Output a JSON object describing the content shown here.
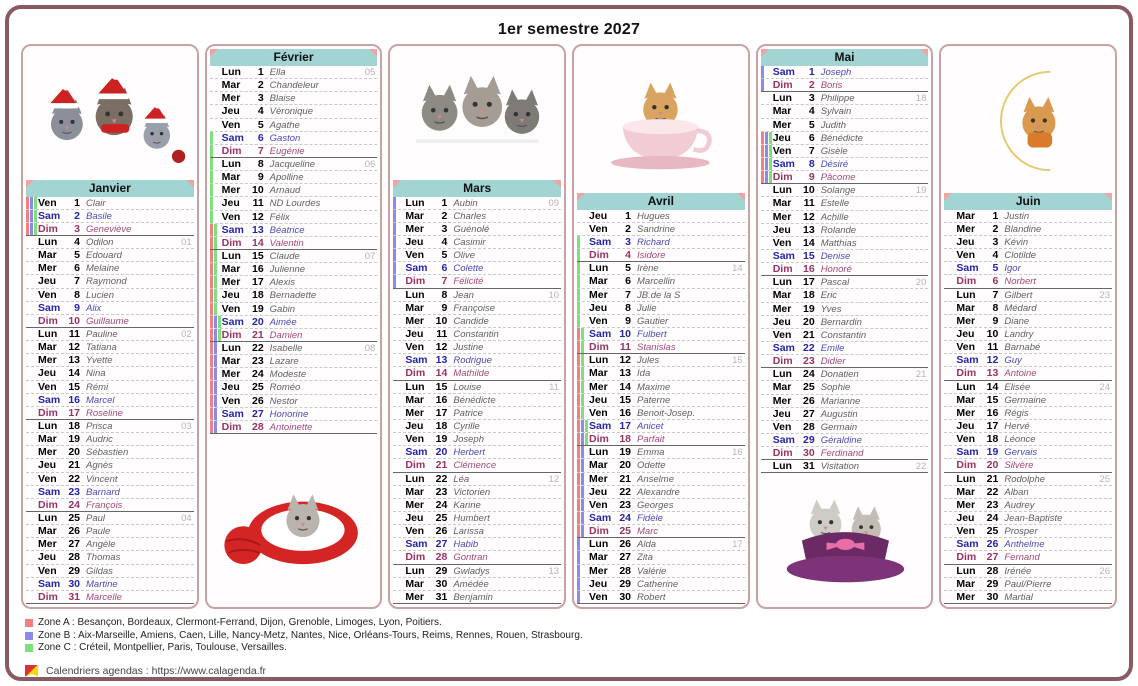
{
  "title": "1er semestre 2027",
  "colors": {
    "frame": "#8a5a62",
    "column_border": "#c9a2a2",
    "header_bg": "#a3d4d4",
    "saturday": "#2424a8",
    "sunday": "#993366",
    "week_number": "#b5b5b5",
    "zones": {
      "A": "#f28080",
      "B": "#8c8ce6",
      "C": "#7de07d"
    }
  },
  "months": [
    {
      "name": "Janvier",
      "image": "christmas-kittens",
      "image_position": "top",
      "days": [
        [
          "Ven",
          1,
          "Clair",
          "ABC",
          ""
        ],
        [
          "Sam",
          2,
          "Basile",
          "ABC",
          ""
        ],
        [
          "Dim",
          3,
          "Geneviève",
          "ABC",
          ""
        ],
        [
          "Lun",
          4,
          "Odilon",
          "",
          "01"
        ],
        [
          "Mar",
          5,
          "Edouard",
          "",
          ""
        ],
        [
          "Mer",
          6,
          "Melaine",
          "",
          ""
        ],
        [
          "Jeu",
          7,
          "Raymond",
          "",
          ""
        ],
        [
          "Ven",
          8,
          "Lucien",
          "",
          ""
        ],
        [
          "Sam",
          9,
          "Alix",
          "",
          ""
        ],
        [
          "Dim",
          10,
          "Guillaume",
          "",
          ""
        ],
        [
          "Lun",
          11,
          "Pauline",
          "",
          "02"
        ],
        [
          "Mar",
          12,
          "Tatiana",
          "",
          ""
        ],
        [
          "Mer",
          13,
          "Yvette",
          "",
          ""
        ],
        [
          "Jeu",
          14,
          "Nina",
          "",
          ""
        ],
        [
          "Ven",
          15,
          "Rémi",
          "",
          ""
        ],
        [
          "Sam",
          16,
          "Marcel",
          "",
          ""
        ],
        [
          "Dim",
          17,
          "Roseline",
          "",
          ""
        ],
        [
          "Lun",
          18,
          "Prisca",
          "",
          "03"
        ],
        [
          "Mar",
          19,
          "Audric",
          "",
          ""
        ],
        [
          "Mer",
          20,
          "Sébastien",
          "",
          ""
        ],
        [
          "Jeu",
          21,
          "Agnès",
          "",
          ""
        ],
        [
          "Ven",
          22,
          "Vincent",
          "",
          ""
        ],
        [
          "Sam",
          23,
          "Barnard",
          "",
          ""
        ],
        [
          "Dim",
          24,
          "François",
          "",
          ""
        ],
        [
          "Lun",
          25,
          "Paul",
          "",
          "04"
        ],
        [
          "Mar",
          26,
          "Paule",
          "",
          ""
        ],
        [
          "Mer",
          27,
          "Angèle",
          "",
          ""
        ],
        [
          "Jeu",
          28,
          "Thomas",
          "",
          ""
        ],
        [
          "Ven",
          29,
          "Gildas",
          "",
          ""
        ],
        [
          "Sam",
          30,
          "Martine",
          "",
          ""
        ],
        [
          "Dim",
          31,
          "Marcelle",
          "",
          ""
        ]
      ]
    },
    {
      "name": "Février",
      "image": "kitten-red-knit-yarn",
      "image_position": "bottom",
      "days": [
        [
          "Lun",
          1,
          "Ella",
          "",
          "05"
        ],
        [
          "Mar",
          2,
          "Chandeleur",
          "",
          ""
        ],
        [
          "Mer",
          3,
          "Blaise",
          "",
          ""
        ],
        [
          "Jeu",
          4,
          "Véronique",
          "",
          ""
        ],
        [
          "Ven",
          5,
          "Agathe",
          "",
          ""
        ],
        [
          "Sam",
          6,
          "Gaston",
          "C",
          ""
        ],
        [
          "Dim",
          7,
          "Eugénie",
          "C",
          ""
        ],
        [
          "Lun",
          8,
          "Jacqueline",
          "C",
          "06"
        ],
        [
          "Mar",
          9,
          "Apolline",
          "C",
          ""
        ],
        [
          "Mer",
          10,
          "Arnaud",
          "C",
          ""
        ],
        [
          "Jeu",
          11,
          "ND Lourdes",
          "C",
          ""
        ],
        [
          "Ven",
          12,
          "Félix",
          "C",
          ""
        ],
        [
          "Sam",
          13,
          "Béatrice",
          "AC",
          ""
        ],
        [
          "Dim",
          14,
          "Valentin",
          "AC",
          ""
        ],
        [
          "Lun",
          15,
          "Claude",
          "AC",
          "07"
        ],
        [
          "Mar",
          16,
          "Julienne",
          "AC",
          ""
        ],
        [
          "Mer",
          17,
          "Alexis",
          "AC",
          ""
        ],
        [
          "Jeu",
          18,
          "Bernadette",
          "AC",
          ""
        ],
        [
          "Ven",
          19,
          "Gabin",
          "AC",
          ""
        ],
        [
          "Sam",
          20,
          "Aimée",
          "ABC",
          ""
        ],
        [
          "Dim",
          21,
          "Damien",
          "ABC",
          ""
        ],
        [
          "Lun",
          22,
          "Isabelle",
          "AB",
          "08"
        ],
        [
          "Mar",
          23,
          "Lazare",
          "AB",
          ""
        ],
        [
          "Mer",
          24,
          "Modeste",
          "AB",
          ""
        ],
        [
          "Jeu",
          25,
          "Roméo",
          "AB",
          ""
        ],
        [
          "Ven",
          26,
          "Nestor",
          "AB",
          ""
        ],
        [
          "Sam",
          27,
          "Honorine",
          "AB",
          ""
        ],
        [
          "Dim",
          28,
          "Antoinette",
          "AB",
          ""
        ]
      ]
    },
    {
      "name": "Mars",
      "image": "three-kittens",
      "image_position": "top",
      "days": [
        [
          "Lun",
          1,
          "Aubin",
          "B",
          "09"
        ],
        [
          "Mar",
          2,
          "Charles",
          "B",
          ""
        ],
        [
          "Mer",
          3,
          "Guénolé",
          "B",
          ""
        ],
        [
          "Jeu",
          4,
          "Casimir",
          "B",
          ""
        ],
        [
          "Ven",
          5,
          "Olive",
          "B",
          ""
        ],
        [
          "Sam",
          6,
          "Colette",
          "B",
          ""
        ],
        [
          "Dim",
          7,
          "Félicité",
          "B",
          ""
        ],
        [
          "Lun",
          8,
          "Jean",
          "",
          "10"
        ],
        [
          "Mar",
          9,
          "Françoise",
          "",
          ""
        ],
        [
          "Mer",
          10,
          "Candide",
          "",
          ""
        ],
        [
          "Jeu",
          11,
          "Constantin",
          "",
          ""
        ],
        [
          "Ven",
          12,
          "Justine",
          "",
          ""
        ],
        [
          "Sam",
          13,
          "Rodrigue",
          "",
          ""
        ],
        [
          "Dim",
          14,
          "Mathilde",
          "",
          ""
        ],
        [
          "Lun",
          15,
          "Louise",
          "",
          "11"
        ],
        [
          "Mar",
          16,
          "Bénédicte",
          "",
          ""
        ],
        [
          "Mer",
          17,
          "Patrice",
          "",
          ""
        ],
        [
          "Jeu",
          18,
          "Cyrille",
          "",
          ""
        ],
        [
          "Ven",
          19,
          "Joseph",
          "",
          ""
        ],
        [
          "Sam",
          20,
          "Herbert",
          "",
          ""
        ],
        [
          "Dim",
          21,
          "Clémence",
          "",
          ""
        ],
        [
          "Lun",
          22,
          "Léa",
          "",
          "12"
        ],
        [
          "Mar",
          23,
          "Victorien",
          "",
          ""
        ],
        [
          "Mer",
          24,
          "Karine",
          "",
          ""
        ],
        [
          "Jeu",
          25,
          "Humbert",
          "",
          ""
        ],
        [
          "Ven",
          26,
          "Larissa",
          "",
          ""
        ],
        [
          "Sam",
          27,
          "Habib",
          "",
          ""
        ],
        [
          "Dim",
          28,
          "Gontran",
          "",
          ""
        ],
        [
          "Lun",
          29,
          "Gwladys",
          "",
          "13"
        ],
        [
          "Mar",
          30,
          "Amédée",
          "",
          ""
        ],
        [
          "Mer",
          31,
          "Benjamin",
          "",
          ""
        ]
      ]
    },
    {
      "name": "Avril",
      "image": "kitten-in-teacup",
      "image_position": "top",
      "days": [
        [
          "Jeu",
          1,
          "Hugues",
          "",
          ""
        ],
        [
          "Ven",
          2,
          "Sandrine",
          "",
          ""
        ],
        [
          "Sam",
          3,
          "Richard",
          "C",
          ""
        ],
        [
          "Dim",
          4,
          "Isidore",
          "C",
          ""
        ],
        [
          "Lun",
          5,
          "Irène",
          "C",
          "14"
        ],
        [
          "Mar",
          6,
          "Marcellin",
          "C",
          ""
        ],
        [
          "Mer",
          7,
          "JB.de la S",
          "C",
          ""
        ],
        [
          "Jeu",
          8,
          "Julie",
          "C",
          ""
        ],
        [
          "Ven",
          9,
          "Gautier",
          "C",
          ""
        ],
        [
          "Sam",
          10,
          "Fulbert",
          "AC",
          ""
        ],
        [
          "Dim",
          11,
          "Stanislas",
          "AC",
          ""
        ],
        [
          "Lun",
          12,
          "Jules",
          "AC",
          "15"
        ],
        [
          "Mar",
          13,
          "Ida",
          "AC",
          ""
        ],
        [
          "Mer",
          14,
          "Maxime",
          "AC",
          ""
        ],
        [
          "Jeu",
          15,
          "Paterne",
          "AC",
          ""
        ],
        [
          "Ven",
          16,
          "Benoit-Josep.",
          "AC",
          ""
        ],
        [
          "Sam",
          17,
          "Anicet",
          "ABC",
          ""
        ],
        [
          "Dim",
          18,
          "Parfait",
          "ABC",
          ""
        ],
        [
          "Lun",
          19,
          "Emma",
          "AB",
          "16"
        ],
        [
          "Mar",
          20,
          "Odette",
          "AB",
          ""
        ],
        [
          "Mer",
          21,
          "Anselme",
          "AB",
          ""
        ],
        [
          "Jeu",
          22,
          "Alexandre",
          "AB",
          ""
        ],
        [
          "Ven",
          23,
          "Georges",
          "AB",
          ""
        ],
        [
          "Sam",
          24,
          "Fidèle",
          "AB",
          ""
        ],
        [
          "Dim",
          25,
          "Marc",
          "AB",
          ""
        ],
        [
          "Lun",
          26,
          "Alda",
          "B",
          "17"
        ],
        [
          "Mar",
          27,
          "Zita",
          "B",
          ""
        ],
        [
          "Mer",
          28,
          "Valérie",
          "B",
          ""
        ],
        [
          "Jeu",
          29,
          "Catherine",
          "B",
          ""
        ],
        [
          "Ven",
          30,
          "Robert",
          "B",
          ""
        ]
      ]
    },
    {
      "name": "Mai",
      "image": "kittens-in-purple-hat",
      "image_position": "bottom",
      "days": [
        [
          "Sam",
          1,
          "Joseph",
          "B",
          ""
        ],
        [
          "Dim",
          2,
          "Boris",
          "B",
          ""
        ],
        [
          "Lun",
          3,
          "Philippe",
          "",
          "18"
        ],
        [
          "Mar",
          4,
          "Sylvain",
          "",
          ""
        ],
        [
          "Mer",
          5,
          "Judith",
          "",
          ""
        ],
        [
          "Jeu",
          6,
          "Bénédicte",
          "ABC",
          ""
        ],
        [
          "Ven",
          7,
          "Gisèle",
          "ABC",
          ""
        ],
        [
          "Sam",
          8,
          "Désiré",
          "ABC",
          ""
        ],
        [
          "Dim",
          9,
          "Pâcome",
          "ABC",
          ""
        ],
        [
          "Lun",
          10,
          "Solange",
          "",
          "19"
        ],
        [
          "Mar",
          11,
          "Estelle",
          "",
          ""
        ],
        [
          "Mer",
          12,
          "Achille",
          "",
          ""
        ],
        [
          "Jeu",
          13,
          "Rolande",
          "",
          ""
        ],
        [
          "Ven",
          14,
          "Matthias",
          "",
          ""
        ],
        [
          "Sam",
          15,
          "Denise",
          "",
          ""
        ],
        [
          "Dim",
          16,
          "Honoré",
          "",
          ""
        ],
        [
          "Lun",
          17,
          "Pascal",
          "",
          "20"
        ],
        [
          "Mar",
          18,
          "Eric",
          "",
          ""
        ],
        [
          "Mer",
          19,
          "Yves",
          "",
          ""
        ],
        [
          "Jeu",
          20,
          "Bernardin",
          "",
          ""
        ],
        [
          "Ven",
          21,
          "Constantin",
          "",
          ""
        ],
        [
          "Sam",
          22,
          "Emile",
          "",
          ""
        ],
        [
          "Dim",
          23,
          "Didier",
          "",
          ""
        ],
        [
          "Lun",
          24,
          "Donatien",
          "",
          "21"
        ],
        [
          "Mar",
          25,
          "Sophie",
          "",
          ""
        ],
        [
          "Mer",
          26,
          "Marianne",
          "",
          ""
        ],
        [
          "Jeu",
          27,
          "Augustin",
          "",
          ""
        ],
        [
          "Ven",
          28,
          "Germain",
          "",
          ""
        ],
        [
          "Sam",
          29,
          "Géraldine",
          "",
          ""
        ],
        [
          "Dim",
          30,
          "Ferdinand",
          "",
          ""
        ],
        [
          "Lun",
          31,
          "Visitation",
          "",
          "22"
        ]
      ]
    },
    {
      "name": "Juin",
      "image": "kitten-on-moon",
      "image_position": "top",
      "days": [
        [
          "Mar",
          1,
          "Justin",
          "",
          ""
        ],
        [
          "Mer",
          2,
          "Blandine",
          "",
          ""
        ],
        [
          "Jeu",
          3,
          "Kévin",
          "",
          ""
        ],
        [
          "Ven",
          4,
          "Clotilde",
          "",
          ""
        ],
        [
          "Sam",
          5,
          "Igor",
          "",
          ""
        ],
        [
          "Dim",
          6,
          "Norbert",
          "",
          ""
        ],
        [
          "Lun",
          7,
          "Gilbert",
          "",
          "23"
        ],
        [
          "Mar",
          8,
          "Médard",
          "",
          ""
        ],
        [
          "Mer",
          9,
          "Diane",
          "",
          ""
        ],
        [
          "Jeu",
          10,
          "Landry",
          "",
          ""
        ],
        [
          "Ven",
          11,
          "Barnabé",
          "",
          ""
        ],
        [
          "Sam",
          12,
          "Guy",
          "",
          ""
        ],
        [
          "Dim",
          13,
          "Antoine",
          "",
          ""
        ],
        [
          "Lun",
          14,
          "Elisée",
          "",
          "24"
        ],
        [
          "Mar",
          15,
          "Germaine",
          "",
          ""
        ],
        [
          "Mer",
          16,
          "Régis",
          "",
          ""
        ],
        [
          "Jeu",
          17,
          "Hervé",
          "",
          ""
        ],
        [
          "Ven",
          18,
          "Léonce",
          "",
          ""
        ],
        [
          "Sam",
          19,
          "Gervais",
          "",
          ""
        ],
        [
          "Dim",
          20,
          "Silvère",
          "",
          ""
        ],
        [
          "Lun",
          21,
          "Rodolphe",
          "",
          "25"
        ],
        [
          "Mar",
          22,
          "Alban",
          "",
          ""
        ],
        [
          "Mer",
          23,
          "Audrey",
          "",
          ""
        ],
        [
          "Jeu",
          24,
          "Jean-Baptiste",
          "",
          ""
        ],
        [
          "Ven",
          25,
          "Prosper",
          "",
          ""
        ],
        [
          "Sam",
          26,
          "Anthelme",
          "",
          ""
        ],
        [
          "Dim",
          27,
          "Fernand",
          "",
          ""
        ],
        [
          "Lun",
          28,
          "Irénée",
          "",
          "26"
        ],
        [
          "Mar",
          29,
          "Paul/Pierre",
          "",
          ""
        ],
        [
          "Mer",
          30,
          "Martial",
          "",
          ""
        ]
      ]
    }
  ],
  "legend": [
    {
      "label": "Zone A",
      "color": "#f28080",
      "cities": "Besançon, Bordeaux, Clermont-Ferrand, Dijon, Grenoble, Limoges, Lyon, Poitiers."
    },
    {
      "label": "Zone B",
      "color": "#8c8ce6",
      "cities": "Aix-Marseille, Amiens, Caen, Lille, Nancy-Metz, Nantes, Nice, Orléans-Tours, Reims, Rennes, Rouen, Strasbourg."
    },
    {
      "label": "Zone C",
      "color": "#7de07d",
      "cities": "Créteil, Montpellier, Paris, Toulouse, Versailles."
    }
  ],
  "footer": {
    "label": "Calendriers agendas : https://www.calagenda.fr"
  }
}
